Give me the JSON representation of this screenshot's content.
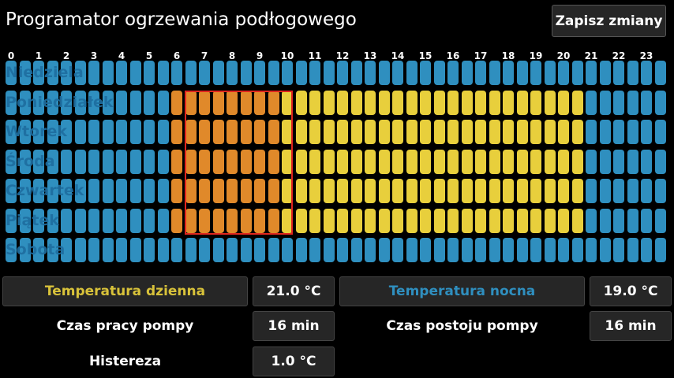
{
  "title": "Programator ogrzewania podłogowego",
  "save_label": "Zapisz zmiany",
  "hours": [
    "0",
    "1",
    "2",
    "3",
    "4",
    "5",
    "6",
    "7",
    "8",
    "9",
    "10",
    "11",
    "12",
    "13",
    "14",
    "15",
    "16",
    "17",
    "18",
    "19",
    "20",
    "21",
    "22",
    "23"
  ],
  "days": [
    {
      "label": "Niedziela",
      "active_hours": []
    },
    {
      "label": "Poniedziałek",
      "active_hours": [
        6,
        7,
        8,
        9,
        10,
        11,
        12,
        13,
        14,
        15,
        16,
        17,
        18,
        19,
        20
      ]
    },
    {
      "label": "Wtorek",
      "active_hours": [
        6,
        7,
        8,
        9,
        10,
        11,
        12,
        13,
        14,
        15,
        16,
        17,
        18,
        19,
        20
      ]
    },
    {
      "label": "Środa",
      "active_hours": [
        6,
        7,
        8,
        9,
        10,
        11,
        12,
        13,
        14,
        15,
        16,
        17,
        18,
        19,
        20
      ]
    },
    {
      "label": "Czwartek",
      "active_hours": [
        6,
        7,
        8,
        9,
        10,
        11,
        12,
        13,
        14,
        15,
        16,
        17,
        18,
        19,
        20
      ]
    },
    {
      "label": "Piątek",
      "active_hours": [
        6,
        7,
        8,
        9,
        10,
        11,
        12,
        13,
        14,
        15,
        16,
        17,
        18,
        19,
        20
      ]
    },
    {
      "label": "Sobota",
      "active_hours": []
    }
  ],
  "selection": {
    "days": [
      "Poniedziałek",
      "Wtorek",
      "Środa",
      "Czwartek",
      "Piątek"
    ],
    "from_hour": 6,
    "to_hour": 9
  },
  "colors": {
    "off": "#2f8fbf",
    "on": "#e8cf3c",
    "selected": "#e0892a",
    "selection_border": "#e0261e",
    "day_temp_label": "#d8c23a",
    "night_temp_label": "#2f8fbf"
  },
  "settings": {
    "day_temp": {
      "label": "Temperatura dzienna",
      "value": "21.0 °C"
    },
    "night_temp": {
      "label": "Temperatura nocna",
      "value": "19.0 °C"
    },
    "pump_run": {
      "label": "Czas pracy pompy",
      "value": "16 min"
    },
    "pump_pause": {
      "label": "Czas postoju pompy",
      "value": "16 min"
    },
    "hysteresis": {
      "label": "Histereza",
      "value": "1.0 °C"
    }
  }
}
